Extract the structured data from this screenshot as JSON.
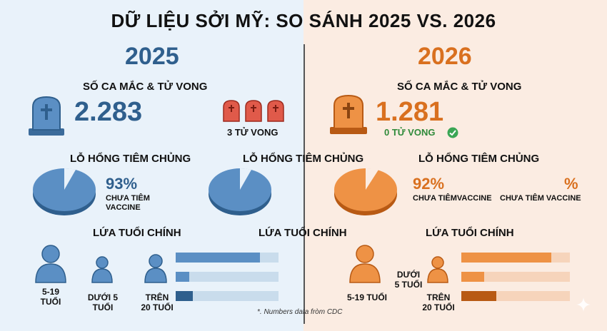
{
  "title": "DỮ LIỆU SỞI MỸ: SO SÁNH 2025 VS. 2026",
  "colors": {
    "left_bg": "#e9f2fa",
    "right_bg": "#fbece2",
    "blue": "#2f5f8d",
    "orange": "#d9701f",
    "green": "#2f8a3a",
    "red": "#c0392b"
  },
  "left": {
    "year": "2025",
    "cases_heading": "SỐ CA MẮC & TỬ VONG",
    "cases": "2.283",
    "deaths": "3 TỬ VONG",
    "vaccine_heading": "LỖ HỔNG TIÊM CHỦNG",
    "vaccine_pct": "93%",
    "vaccine_label_1": "CHƯA TIÊM",
    "vaccine_label_2": "VACCINE",
    "vaccine_unvaccinated_fraction": 0.93,
    "age_heading": "LỨA TUỔI CHÍNH",
    "age_groups": [
      {
        "label_1": "5-19",
        "label_2": "TUỔI"
      },
      {
        "label_1": "DƯỚI 5",
        "label_2": "TUỔI"
      },
      {
        "label_1": "TRÊN",
        "label_2": "20 TUỔI"
      }
    ],
    "age_bar_fractions": [
      0.82,
      0.13,
      0.17
    ]
  },
  "middle": {
    "vaccine_heading": "LỖ HỔNG TIÊM CHỦNG",
    "age_heading": "LỨA TUỔI CHÍNH"
  },
  "right": {
    "year": "2026",
    "cases_heading": "SỐ CA MẮC & TỬ VONG",
    "cases": "1.281",
    "deaths": "0 TỬ VONG",
    "vaccine_heading": "LỖ HỔNG TIÊM CHỦNG",
    "vaccine_pct": "92%",
    "vaccine_label": "CHƯA TIÊMVACCINE",
    "extra_pct": "%",
    "extra_label": "CHƯA TIÊM VACCINE",
    "vaccine_unvaccinated_fraction": 0.92,
    "age_heading": "LỨA TUỔI CHÍNH",
    "age_groups": [
      {
        "label_1": "5-19 TUỔI"
      },
      {
        "label_1": "DƯỚI",
        "label_2": "5 TUỔI"
      },
      {
        "label_1": "TRÊN",
        "label_2": "20 TUỔI"
      }
    ],
    "age_bar_fractions": [
      0.83,
      0.21,
      0.32
    ]
  },
  "footnote": "*. Numbers data fròm CDC"
}
